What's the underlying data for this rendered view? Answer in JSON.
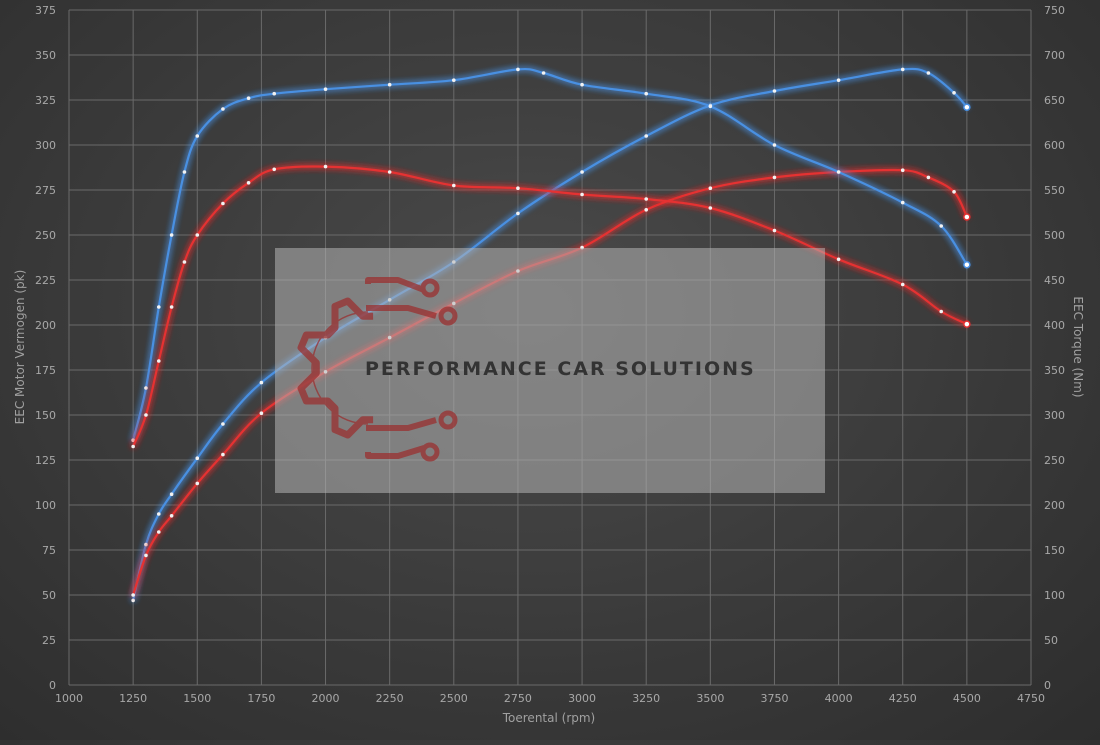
{
  "chart_data": {
    "type": "line",
    "title": "",
    "xlabel": "Toerental (rpm)",
    "ylabel_left": "EEC Motor Vermogen (pk)",
    "ylabel_right": "EEC Torque (Nm)",
    "xlim": [
      1000,
      4750
    ],
    "ylim_left": [
      0,
      375
    ],
    "ylim_right": [
      0,
      750
    ],
    "x_ticks": [
      "1000",
      "1250",
      "1500",
      "1750",
      "2000",
      "2250",
      "2500",
      "2750",
      "3000",
      "3250",
      "3500",
      "3750",
      "4000",
      "4250",
      "4500",
      "4750"
    ],
    "y_left_ticks": [
      "0",
      "25",
      "50",
      "75",
      "100",
      "125",
      "150",
      "175",
      "200",
      "225",
      "250",
      "275",
      "300",
      "325",
      "350",
      "375"
    ],
    "y_right_ticks": [
      "0",
      "50",
      "100",
      "150",
      "200",
      "250",
      "300",
      "350",
      "400",
      "450",
      "500",
      "550",
      "600",
      "650",
      "700",
      "750"
    ],
    "grid": true,
    "legend": "none",
    "series": [
      {
        "axis": "left",
        "color": "#4a90e2",
        "x": [
          1250,
          1300,
          1350,
          1400,
          1500,
          1600,
          1750,
          2000,
          2250,
          2500,
          2750,
          3000,
          3250,
          3500,
          3750,
          4000,
          4250,
          4350,
          4450,
          4500
        ],
        "values": [
          47,
          78,
          95,
          106,
          126,
          145,
          168,
          193,
          214,
          235,
          262,
          285,
          305,
          322,
          330,
          336,
          342,
          340,
          329,
          321
        ]
      },
      {
        "axis": "left",
        "color": "#e53030",
        "x": [
          1250,
          1300,
          1350,
          1400,
          1500,
          1600,
          1750,
          2000,
          2250,
          2500,
          2750,
          3000,
          3250,
          3500,
          3750,
          4000,
          4250,
          4350,
          4450,
          4500
        ],
        "values": [
          50,
          72,
          85,
          94,
          112,
          128,
          151,
          174,
          193,
          212,
          230,
          243,
          264,
          276,
          282,
          285,
          286,
          282,
          274,
          260
        ]
      },
      {
        "axis": "right",
        "color": "#4a90e2",
        "x": [
          1250,
          1300,
          1350,
          1400,
          1450,
          1500,
          1600,
          1700,
          1800,
          2000,
          2250,
          2500,
          2750,
          2850,
          3000,
          3250,
          3500,
          3750,
          4000,
          4250,
          4400,
          4500
        ],
        "values": [
          272,
          330,
          420,
          500,
          570,
          610,
          640,
          652,
          657,
          662,
          667,
          672,
          684,
          680,
          667,
          657,
          643,
          600,
          570,
          536,
          510,
          467
        ]
      },
      {
        "axis": "right",
        "color": "#e53030",
        "x": [
          1250,
          1300,
          1350,
          1400,
          1450,
          1500,
          1600,
          1700,
          1800,
          2000,
          2250,
          2500,
          2750,
          3000,
          3250,
          3500,
          3750,
          4000,
          4250,
          4400,
          4500
        ],
        "values": [
          265,
          300,
          360,
          420,
          470,
          500,
          535,
          558,
          573,
          576,
          570,
          555,
          552,
          545,
          540,
          530,
          505,
          473,
          445,
          415,
          401
        ]
      }
    ]
  },
  "watermark": {
    "text": "PERFORMANCE CAR SOLUTIONS",
    "color": "#9a3030"
  }
}
